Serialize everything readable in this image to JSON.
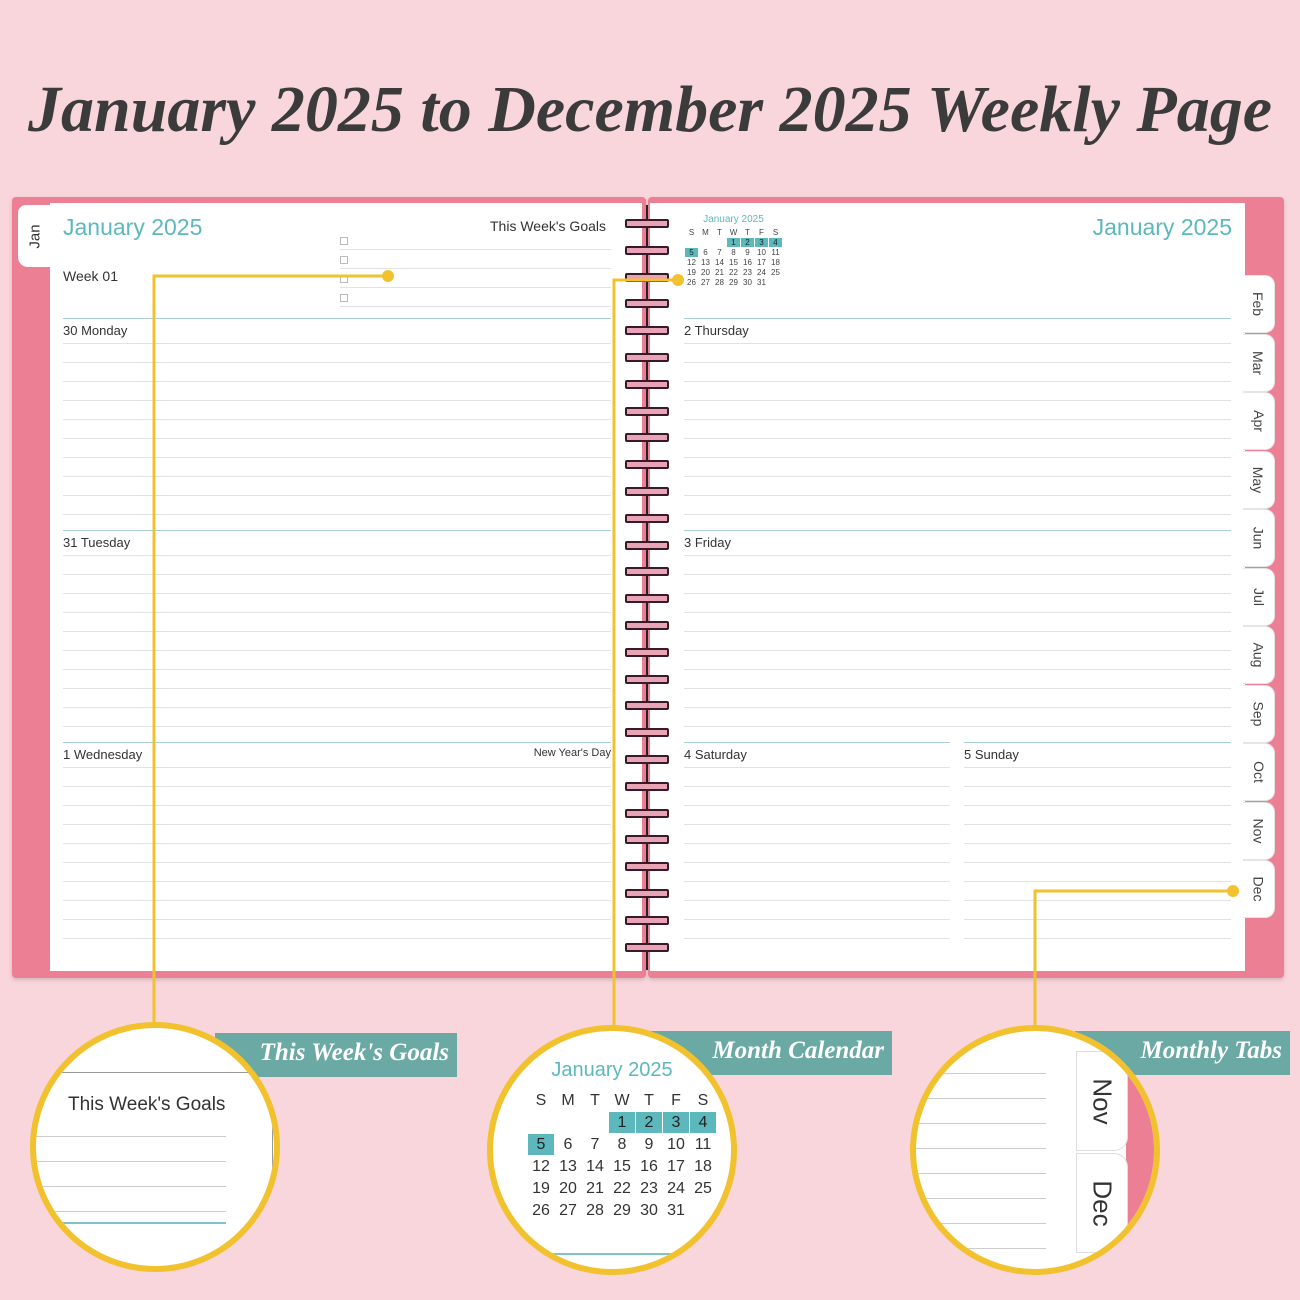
{
  "title": "January 2025 to December 2025 Weekly Page",
  "colors": {
    "background": "#f9d5dc",
    "cover": "#ec7f94",
    "accent_teal": "#5cb8bc",
    "callout_yellow": "#f2c12e",
    "label_bg": "#6aa9a4"
  },
  "left_page": {
    "tab": "Jan",
    "month_title": "January 2025",
    "week": "Week 01",
    "goals_label": "This Week's Goals",
    "days": [
      {
        "label": "30 Monday",
        "note": ""
      },
      {
        "label": "31 Tuesday",
        "note": ""
      },
      {
        "label": "1 Wednesday",
        "note": "New Year's Day"
      }
    ]
  },
  "right_page": {
    "month_title": "January 2025",
    "mini_calendar": {
      "title": "January 2025",
      "weekdays": [
        "S",
        "M",
        "T",
        "W",
        "T",
        "F",
        "S"
      ],
      "weeks": [
        [
          "",
          "",
          "",
          "1",
          "2",
          "3",
          "4"
        ],
        [
          "5",
          "6",
          "7",
          "8",
          "9",
          "10",
          "11"
        ],
        [
          "12",
          "13",
          "14",
          "15",
          "16",
          "17",
          "18"
        ],
        [
          "19",
          "20",
          "21",
          "22",
          "23",
          "24",
          "25"
        ],
        [
          "26",
          "27",
          "28",
          "29",
          "30",
          "31",
          ""
        ]
      ],
      "highlighted": [
        "1",
        "2",
        "3",
        "4",
        "5"
      ]
    },
    "days": [
      {
        "label": "2 Thursday"
      },
      {
        "label": "3 Friday"
      },
      {
        "label": "4 Saturday"
      },
      {
        "label": "5 Sunday"
      }
    ],
    "tabs": [
      "Feb",
      "Mar",
      "Apr",
      "May",
      "Jun",
      "Jul",
      "Aug",
      "Sep",
      "Oct",
      "Nov",
      "Dec"
    ]
  },
  "callouts": [
    {
      "label": "This Week's Goals",
      "content": "This Week's Goals"
    },
    {
      "label": "Month Calendar",
      "content": "January 2025"
    },
    {
      "label": "Monthly Tabs",
      "tabs": [
        "Nov",
        "Dec"
      ]
    }
  ]
}
